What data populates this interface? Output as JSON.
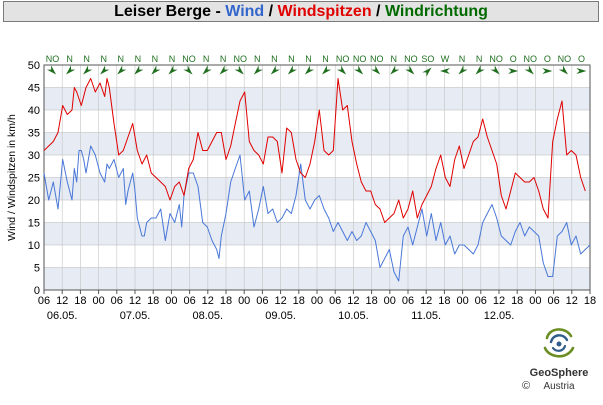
{
  "title": {
    "station": "Leiser Berge",
    "sep1": " - ",
    "wind": "Wind",
    "sep2": " / ",
    "gust": "Windspitzen",
    "sep3": " / ",
    "dir": "Windrichtung"
  },
  "colors": {
    "wind": "#4a78d8",
    "gust": "#e00000",
    "direction": "#1f6f1f",
    "band": "#e6ebf4",
    "title_bg": "#e3e3e3"
  },
  "chart_data": {
    "type": "line",
    "ylabel": "Wind / Windspitzen in km/h",
    "ylim": [
      0,
      50
    ],
    "yticks": [
      0,
      5,
      10,
      15,
      20,
      25,
      30,
      35,
      40,
      45,
      50
    ],
    "x_range_hours": [
      0,
      170
    ],
    "xticks": [
      "06",
      "12",
      "18",
      "00",
      "06",
      "12",
      "18",
      "00",
      "06",
      "12",
      "18",
      "00",
      "06",
      "12",
      "18",
      "00",
      "06",
      "12",
      "18",
      "00",
      "06",
      "12",
      "18",
      "00",
      "06",
      "12",
      "18",
      "00",
      "06",
      "12",
      "18"
    ],
    "day_labels": [
      "06.05.",
      "07.05.",
      "08.05.",
      "09.05.",
      "10.05.",
      "11.05.",
      "12.05."
    ],
    "direction_labels": [
      "NO",
      "N",
      "N",
      "N",
      "N",
      "N",
      "N",
      "N",
      "NO",
      "N",
      "N",
      "NO",
      "N",
      "N",
      "N",
      "N",
      "N",
      "NO",
      "NO",
      "NO",
      "N",
      "NO",
      "SO",
      "W",
      "N",
      "N",
      "NO",
      "O",
      "NO",
      "O",
      "NO",
      "O"
    ],
    "series": [
      {
        "name": "Wind",
        "color": "#4a78d8",
        "values": [
          [
            0,
            26
          ],
          [
            2,
            20
          ],
          [
            4,
            24
          ],
          [
            6,
            18
          ],
          [
            8,
            29
          ],
          [
            10,
            24
          ],
          [
            12,
            20
          ],
          [
            13,
            27
          ],
          [
            14,
            24
          ],
          [
            15,
            31
          ],
          [
            16,
            31
          ],
          [
            17,
            29
          ],
          [
            18,
            26
          ],
          [
            20,
            32
          ],
          [
            22,
            30
          ],
          [
            24,
            26
          ],
          [
            26,
            24
          ],
          [
            27,
            28
          ],
          [
            28,
            27
          ],
          [
            30,
            29
          ],
          [
            32,
            25
          ],
          [
            34,
            27
          ],
          [
            35,
            19
          ],
          [
            36,
            22
          ],
          [
            37,
            24
          ],
          [
            38,
            26
          ],
          [
            39,
            22
          ],
          [
            40,
            16
          ],
          [
            42,
            12
          ],
          [
            43,
            12
          ],
          [
            44,
            15
          ],
          [
            46,
            16
          ],
          [
            48,
            16
          ],
          [
            50,
            18
          ],
          [
            52,
            11
          ],
          [
            54,
            17
          ],
          [
            56,
            15
          ],
          [
            58,
            19
          ],
          [
            59,
            14
          ],
          [
            60,
            21
          ],
          [
            62,
            26
          ],
          [
            64,
            26
          ],
          [
            66,
            23
          ],
          [
            68,
            15
          ],
          [
            70,
            14
          ],
          [
            72,
            11
          ],
          [
            74,
            9
          ],
          [
            75,
            7
          ],
          [
            76,
            12
          ],
          [
            78,
            17
          ],
          [
            80,
            24
          ],
          [
            82,
            27
          ],
          [
            84,
            30
          ],
          [
            86,
            20
          ],
          [
            88,
            22
          ],
          [
            90,
            14
          ],
          [
            92,
            18
          ],
          [
            94,
            23
          ],
          [
            96,
            17
          ],
          [
            98,
            18
          ],
          [
            100,
            15
          ],
          [
            102,
            16
          ],
          [
            104,
            18
          ],
          [
            106,
            17
          ],
          [
            108,
            21
          ],
          [
            110,
            28
          ],
          [
            112,
            20
          ],
          [
            114,
            18
          ],
          [
            116,
            20
          ],
          [
            118,
            21
          ],
          [
            120,
            18
          ],
          [
            122,
            16
          ],
          [
            124,
            13
          ],
          [
            126,
            15
          ],
          [
            128,
            13
          ],
          [
            130,
            11
          ],
          [
            132,
            13
          ],
          [
            134,
            11
          ],
          [
            136,
            12
          ],
          [
            138,
            15
          ],
          [
            140,
            13
          ],
          [
            142,
            11
          ],
          [
            144,
            5
          ],
          [
            146,
            7
          ],
          [
            148,
            9
          ],
          [
            150,
            4
          ],
          [
            152,
            2
          ],
          [
            154,
            12
          ],
          [
            156,
            14
          ],
          [
            158,
            10
          ],
          [
            160,
            14
          ],
          [
            162,
            18
          ],
          [
            164,
            12
          ],
          [
            166,
            17
          ],
          [
            168,
            11
          ],
          [
            170,
            15
          ],
          [
            172,
            10
          ],
          [
            174,
            12
          ],
          [
            176,
            8
          ],
          [
            178,
            10
          ],
          [
            180,
            10
          ],
          [
            182,
            9
          ],
          [
            184,
            8
          ],
          [
            186,
            10
          ],
          [
            188,
            15
          ],
          [
            190,
            17
          ],
          [
            192,
            19
          ],
          [
            194,
            16
          ],
          [
            196,
            12
          ],
          [
            198,
            11
          ],
          [
            200,
            10
          ],
          [
            202,
            13
          ],
          [
            204,
            15
          ],
          [
            206,
            12
          ],
          [
            208,
            14
          ],
          [
            210,
            13
          ],
          [
            212,
            12
          ],
          [
            214,
            6
          ],
          [
            216,
            3
          ],
          [
            218,
            3
          ],
          [
            220,
            12
          ],
          [
            222,
            13
          ],
          [
            224,
            15
          ],
          [
            226,
            10
          ],
          [
            228,
            12
          ],
          [
            230,
            8
          ],
          [
            232,
            9
          ],
          [
            234,
            10
          ]
        ]
      },
      {
        "name": "Windspitzen",
        "color": "#e00000",
        "values": [
          [
            0,
            31
          ],
          [
            2,
            32
          ],
          [
            4,
            33
          ],
          [
            6,
            35
          ],
          [
            8,
            41
          ],
          [
            10,
            39
          ],
          [
            12,
            40
          ],
          [
            13,
            45
          ],
          [
            14,
            44
          ],
          [
            16,
            41
          ],
          [
            18,
            45
          ],
          [
            20,
            47
          ],
          [
            22,
            44
          ],
          [
            24,
            46
          ],
          [
            26,
            43
          ],
          [
            27,
            47
          ],
          [
            28,
            45
          ],
          [
            30,
            37
          ],
          [
            32,
            30
          ],
          [
            34,
            31
          ],
          [
            36,
            34
          ],
          [
            38,
            37
          ],
          [
            40,
            31
          ],
          [
            42,
            28
          ],
          [
            44,
            30
          ],
          [
            46,
            26
          ],
          [
            48,
            25
          ],
          [
            50,
            24
          ],
          [
            52,
            23
          ],
          [
            54,
            20
          ],
          [
            56,
            23
          ],
          [
            58,
            24
          ],
          [
            60,
            21
          ],
          [
            62,
            27
          ],
          [
            64,
            29
          ],
          [
            66,
            35
          ],
          [
            68,
            31
          ],
          [
            70,
            31
          ],
          [
            72,
            33
          ],
          [
            74,
            35
          ],
          [
            76,
            35
          ],
          [
            78,
            29
          ],
          [
            80,
            32
          ],
          [
            82,
            37
          ],
          [
            84,
            42
          ],
          [
            86,
            44
          ],
          [
            88,
            33
          ],
          [
            90,
            31
          ],
          [
            92,
            30
          ],
          [
            94,
            28
          ],
          [
            96,
            34
          ],
          [
            98,
            34
          ],
          [
            100,
            33
          ],
          [
            102,
            26
          ],
          [
            104,
            36
          ],
          [
            106,
            35
          ],
          [
            108,
            29
          ],
          [
            110,
            26
          ],
          [
            112,
            25
          ],
          [
            114,
            28
          ],
          [
            116,
            33
          ],
          [
            118,
            40
          ],
          [
            120,
            31
          ],
          [
            122,
            30
          ],
          [
            124,
            31
          ],
          [
            126,
            47
          ],
          [
            128,
            40
          ],
          [
            130,
            41
          ],
          [
            132,
            33
          ],
          [
            134,
            28
          ],
          [
            136,
            24
          ],
          [
            138,
            22
          ],
          [
            140,
            22
          ],
          [
            142,
            19
          ],
          [
            144,
            18
          ],
          [
            146,
            15
          ],
          [
            148,
            16
          ],
          [
            150,
            17
          ],
          [
            152,
            20
          ],
          [
            154,
            16
          ],
          [
            156,
            18
          ],
          [
            158,
            22
          ],
          [
            160,
            16
          ],
          [
            162,
            19
          ],
          [
            164,
            21
          ],
          [
            166,
            23
          ],
          [
            168,
            27
          ],
          [
            170,
            30
          ],
          [
            172,
            25
          ],
          [
            174,
            23
          ],
          [
            176,
            29
          ],
          [
            178,
            32
          ],
          [
            180,
            27
          ],
          [
            182,
            30
          ],
          [
            184,
            33
          ],
          [
            186,
            34
          ],
          [
            188,
            38
          ],
          [
            190,
            34
          ],
          [
            192,
            31
          ],
          [
            194,
            28
          ],
          [
            196,
            21
          ],
          [
            198,
            18
          ],
          [
            200,
            22
          ],
          [
            202,
            26
          ],
          [
            204,
            25
          ],
          [
            206,
            24
          ],
          [
            208,
            24
          ],
          [
            210,
            25
          ],
          [
            212,
            22
          ],
          [
            214,
            18
          ],
          [
            216,
            16
          ],
          [
            218,
            33
          ],
          [
            220,
            38
          ],
          [
            222,
            42
          ],
          [
            224,
            30
          ],
          [
            226,
            31
          ],
          [
            228,
            30
          ],
          [
            230,
            25
          ],
          [
            232,
            22
          ]
        ]
      }
    ],
    "grid": true,
    "legend": "none"
  },
  "logo": {
    "name": "GeoSphere",
    "sub": "Austria",
    "copyright": "©"
  }
}
